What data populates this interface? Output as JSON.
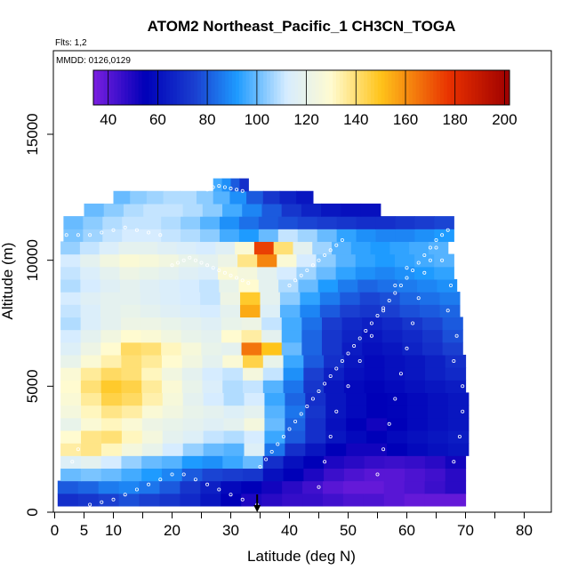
{
  "chart_data": {
    "type": "heatmap",
    "title": "ATOM2 Northeast_Pacific_1 CH3CN_TOGA",
    "flights_label": "Flts: 1,2",
    "date_label": "MMDD: 0126,0129",
    "xlabel": "Latitude (deg N)",
    "ylabel": "Altitude (m)",
    "xlim": [
      0,
      85
    ],
    "ylim": [
      0,
      17500
    ],
    "x_ticks": [
      0,
      5,
      10,
      20,
      30,
      40,
      50,
      60,
      70,
      80
    ],
    "x_minor_ticks": [
      15,
      25,
      35,
      45,
      55,
      65,
      75,
      85
    ],
    "y_ticks": [
      0,
      5000,
      10000,
      15000
    ],
    "grid": false,
    "colorbar": {
      "placement": "top",
      "min": 34,
      "max": 202,
      "ticks": [
        40,
        60,
        80,
        100,
        120,
        140,
        160,
        180,
        200
      ],
      "colors": [
        "#7b1fe0",
        "#0000b8",
        "#1a3fd0",
        "#1e9bff",
        "#d6ecff",
        "#fffbd0",
        "#ffc41a",
        "#e83000",
        "#9e0000"
      ],
      "color_stops": [
        34,
        55,
        75,
        92,
        112,
        130,
        150,
        178,
        202
      ]
    },
    "marker": {
      "latitude": 34.5,
      "label": "arrow"
    },
    "rows": [
      {
        "alt": 500,
        "x0": 0.5,
        "x1": 70,
        "v": [
          70,
          72,
          75,
          78,
          75,
          72,
          68,
          62,
          55,
          50,
          48,
          46,
          46,
          44,
          42,
          42,
          40,
          38,
          38,
          38
        ]
      },
      {
        "alt": 1000,
        "x0": 0.5,
        "x1": 70,
        "v": [
          80,
          82,
          86,
          88,
          85,
          80,
          72,
          65,
          58,
          55,
          52,
          48,
          44,
          40,
          38,
          38,
          40,
          42,
          45,
          48
        ]
      },
      {
        "alt": 1500,
        "x0": 1,
        "x1": 70,
        "v": [
          100,
          102,
          100,
          96,
          92,
          88,
          80,
          76,
          74,
          72,
          60,
          55,
          50,
          45,
          42,
          40,
          40,
          42,
          44,
          48
        ]
      },
      {
        "alt": 2000,
        "x0": 1,
        "x1": 70,
        "v": [
          115,
          118,
          112,
          105,
          100,
          98,
          92,
          90,
          95,
          100,
          70,
          60,
          55,
          50,
          48,
          46,
          45,
          46,
          48,
          52
        ]
      },
      {
        "alt": 2500,
        "x0": 1,
        "x1": 70.5,
        "v": [
          135,
          138,
          132,
          125,
          120,
          112,
          105,
          100,
          98,
          115,
          85,
          70,
          62,
          55,
          52,
          52,
          55,
          58,
          60,
          62
        ]
      },
      {
        "alt": 3000,
        "x0": 1,
        "x1": 70.5,
        "v": [
          130,
          138,
          140,
          132,
          125,
          118,
          115,
          110,
          108,
          112,
          95,
          80,
          70,
          62,
          58,
          55,
          58,
          60,
          62,
          64
        ]
      },
      {
        "alt": 3500,
        "x0": 1,
        "x1": 70.5,
        "v": [
          120,
          128,
          132,
          128,
          122,
          120,
          118,
          116,
          118,
          125,
          100,
          82,
          70,
          60,
          55,
          52,
          55,
          58,
          60,
          62
        ]
      },
      {
        "alt": 4000,
        "x0": 1,
        "x1": 70.5,
        "v": [
          125,
          132,
          138,
          135,
          128,
          124,
          120,
          118,
          115,
          118,
          98,
          85,
          72,
          62,
          58,
          55,
          56,
          58,
          60,
          62
        ]
      },
      {
        "alt": 4500,
        "x0": 1,
        "x1": 70.5,
        "v": [
          128,
          136,
          145,
          142,
          134,
          126,
          118,
          112,
          108,
          112,
          95,
          82,
          70,
          62,
          58,
          55,
          56,
          58,
          60,
          62
        ]
      },
      {
        "alt": 5000,
        "x0": 1,
        "x1": 70,
        "v": [
          130,
          140,
          148,
          145,
          136,
          128,
          120,
          114,
          108,
          110,
          98,
          85,
          72,
          62,
          58,
          56,
          58,
          60,
          62,
          64
        ]
      },
      {
        "alt": 5500,
        "x0": 1,
        "x1": 70,
        "v": [
          128,
          136,
          142,
          140,
          132,
          124,
          118,
          112,
          110,
          125,
          110,
          90,
          75,
          65,
          60,
          58,
          60,
          62,
          65,
          68
        ]
      },
      {
        "alt": 6000,
        "x0": 1,
        "x1": 70,
        "v": [
          120,
          128,
          134,
          140,
          136,
          130,
          124,
          118,
          128,
          145,
          120,
          95,
          80,
          70,
          62,
          58,
          60,
          62,
          65,
          70
        ]
      },
      {
        "alt": 6500,
        "x0": 1,
        "x1": 69.5,
        "v": [
          115,
          122,
          130,
          142,
          140,
          132,
          126,
          120,
          118,
          165,
          150,
          100,
          82,
          72,
          64,
          60,
          62,
          66,
          70,
          75
        ]
      },
      {
        "alt": 7000,
        "x0": 1,
        "x1": 69.5,
        "v": [
          112,
          118,
          124,
          130,
          128,
          124,
          120,
          118,
          130,
          135,
          118,
          96,
          82,
          72,
          66,
          62,
          65,
          68,
          72,
          78
        ]
      },
      {
        "alt": 7500,
        "x0": 1,
        "x1": 69.5,
        "v": [
          108,
          114,
          118,
          122,
          122,
          120,
          118,
          116,
          120,
          122,
          110,
          96,
          84,
          74,
          68,
          65,
          68,
          72,
          76,
          80
        ]
      },
      {
        "alt": 8000,
        "x0": 1,
        "x1": 69,
        "v": [
          110,
          114,
          118,
          120,
          118,
          116,
          114,
          112,
          118,
          155,
          115,
          98,
          88,
          80,
          75,
          72,
          75,
          78,
          80,
          82
        ]
      },
      {
        "alt": 8500,
        "x0": 1,
        "x1": 69,
        "v": [
          112,
          116,
          118,
          118,
          116,
          114,
          112,
          110,
          122,
          148,
          118,
          104,
          94,
          86,
          80,
          76,
          78,
          82,
          84,
          86
        ]
      },
      {
        "alt": 9000,
        "x0": 1,
        "x1": 68.5,
        "v": [
          108,
          112,
          116,
          118,
          116,
          114,
          112,
          110,
          120,
          130,
          118,
          108,
          100,
          92,
          86,
          82,
          84,
          86,
          88,
          90
        ]
      },
      {
        "alt": 9500,
        "x0": 1,
        "x1": 68,
        "v": [
          110,
          114,
          118,
          122,
          120,
          118,
          116,
          114,
          128,
          125,
          118,
          112,
          106,
          100,
          94,
          90,
          88,
          90,
          92,
          94
        ]
      },
      {
        "alt": 10000,
        "x0": 1,
        "x1": 68,
        "v": [
          112,
          118,
          124,
          128,
          126,
          124,
          120,
          118,
          122,
          138,
          162,
          128,
          112,
          104,
          98,
          94,
          92,
          94,
          96,
          98
        ]
      },
      {
        "alt": 10500,
        "x0": 1,
        "x1": 67,
        "v": [
          105,
          110,
          114,
          118,
          118,
          116,
          114,
          112,
          116,
          128,
          175,
          140,
          118,
          106,
          98,
          94,
          92,
          94,
          96,
          98
        ]
      },
      {
        "alt": 11000,
        "x0": 1.5,
        "x1": 68,
        "v": [
          102,
          106,
          110,
          112,
          112,
          110,
          108,
          104,
          96,
          92,
          100,
          110,
          106,
          100,
          94,
          90,
          88,
          88,
          90,
          92
        ]
      },
      {
        "alt": 11500,
        "x0": 1.5,
        "x1": 68,
        "v": [
          100,
          104,
          108,
          110,
          110,
          108,
          104,
          98,
          90,
          84,
          80,
          78,
          76,
          74,
          72,
          70,
          70,
          72,
          74,
          76
        ]
      },
      {
        "alt": 12000,
        "x0": 5,
        "x1": 55.5,
        "v": [
          100,
          104,
          108,
          110,
          110,
          108,
          104,
          96,
          88,
          80,
          72,
          66,
          62,
          60,
          60
        ]
      },
      {
        "alt": 12500,
        "x0": 10,
        "x1": 44,
        "v": [
          100,
          104,
          106,
          108,
          108,
          104,
          98,
          90,
          80,
          72,
          66,
          62
        ]
      },
      {
        "alt": 13000,
        "x0": 27,
        "x1": 33,
        "v": [
          96,
          90,
          80,
          70
        ]
      }
    ],
    "points": [
      [
        34.5,
        300
      ],
      [
        32,
        500
      ],
      [
        30,
        700
      ],
      [
        28,
        900
      ],
      [
        26,
        1100
      ],
      [
        24,
        1300
      ],
      [
        22,
        1500
      ],
      [
        35,
        1800
      ],
      [
        36,
        2100
      ],
      [
        37,
        2400
      ],
      [
        38,
        2700
      ],
      [
        39,
        3000
      ],
      [
        40,
        3300
      ],
      [
        41,
        3600
      ],
      [
        42,
        3900
      ],
      [
        43,
        4200
      ],
      [
        44,
        4500
      ],
      [
        45,
        4800
      ],
      [
        46,
        5100
      ],
      [
        47,
        5400
      ],
      [
        48,
        5700
      ],
      [
        49,
        6000
      ],
      [
        50,
        6300
      ],
      [
        51,
        6600
      ],
      [
        52,
        6900
      ],
      [
        53,
        7200
      ],
      [
        54,
        7500
      ],
      [
        55,
        7800
      ],
      [
        56,
        8100
      ],
      [
        57,
        8400
      ],
      [
        58,
        8700
      ],
      [
        59,
        9000
      ],
      [
        60,
        9300
      ],
      [
        61,
        9600
      ],
      [
        62,
        9900
      ],
      [
        63,
        10200
      ],
      [
        64,
        10500
      ],
      [
        65,
        10800
      ],
      [
        66,
        11000
      ],
      [
        67,
        11200
      ],
      [
        20,
        9800
      ],
      [
        21,
        9900
      ],
      [
        22,
        10000
      ],
      [
        23,
        10100
      ],
      [
        24,
        10000
      ],
      [
        25,
        9900
      ],
      [
        26,
        9800
      ],
      [
        27,
        9700
      ],
      [
        28,
        9600
      ],
      [
        29,
        9500
      ],
      [
        30,
        9400
      ],
      [
        31,
        9300
      ],
      [
        32,
        9200
      ],
      [
        33,
        9100
      ],
      [
        2,
        11000
      ],
      [
        4,
        11000
      ],
      [
        6,
        11000
      ],
      [
        8,
        11100
      ],
      [
        10,
        11200
      ],
      [
        12,
        11300
      ],
      [
        14,
        11200
      ],
      [
        16,
        11100
      ],
      [
        18,
        11000
      ],
      [
        26,
        12800
      ],
      [
        27,
        12900
      ],
      [
        28,
        12950
      ],
      [
        29,
        12900
      ],
      [
        30,
        12850
      ],
      [
        31,
        12800
      ],
      [
        32,
        12750
      ],
      [
        6,
        300
      ],
      [
        8,
        400
      ],
      [
        10,
        500
      ],
      [
        12,
        700
      ],
      [
        14,
        900
      ],
      [
        16,
        1100
      ],
      [
        18,
        1300
      ],
      [
        20,
        1500
      ],
      [
        3,
        2000
      ],
      [
        4,
        2500
      ],
      [
        68,
        2000
      ],
      [
        69,
        3000
      ],
      [
        69.5,
        4000
      ],
      [
        69.5,
        5000
      ],
      [
        68,
        6000
      ],
      [
        68.5,
        7000
      ],
      [
        67,
        8000
      ],
      [
        67.5,
        9000
      ],
      [
        66,
        10000
      ],
      [
        65,
        10500
      ],
      [
        55,
        1500
      ],
      [
        56,
        2500
      ],
      [
        57,
        3500
      ],
      [
        58,
        4500
      ],
      [
        59,
        5500
      ],
      [
        60,
        6500
      ],
      [
        61,
        7500
      ],
      [
        62,
        8500
      ],
      [
        63,
        9500
      ],
      [
        64,
        10000
      ],
      [
        45,
        1000
      ],
      [
        46,
        2000
      ],
      [
        47,
        3000
      ],
      [
        48,
        4000
      ],
      [
        50,
        5000
      ],
      [
        52,
        6000
      ],
      [
        54,
        7000
      ],
      [
        56,
        8000
      ],
      [
        58,
        9000
      ],
      [
        60,
        9700
      ],
      [
        40,
        9000
      ],
      [
        41,
        9200
      ],
      [
        42,
        9400
      ],
      [
        43,
        9600
      ],
      [
        44,
        9800
      ],
      [
        45,
        10000
      ],
      [
        46,
        10200
      ],
      [
        47,
        10400
      ],
      [
        48,
        10600
      ],
      [
        49,
        10800
      ]
    ]
  }
}
